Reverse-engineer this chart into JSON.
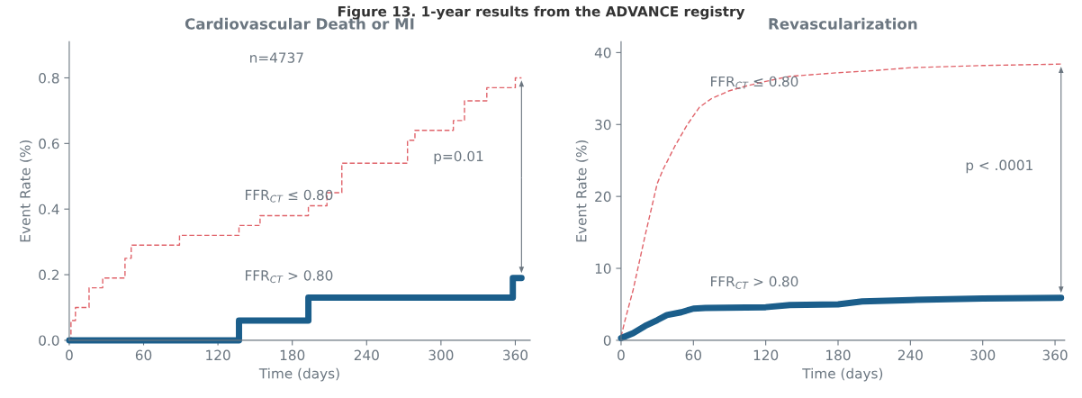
{
  "chart_data": [
    {
      "type": "step",
      "title": "Cardiovascular Death or MI",
      "xlabel": "Time (days)",
      "ylabel": "Event Rate (%)",
      "annotations": [
        "Figure 13. 1-year results from the ADVANCE registry",
        "n=4737",
        "p=0.01"
      ],
      "series": [
        {
          "name": "FFR$_{CT}$ ≤ 0.80",
          "color": "#e0636a",
          "line_style": "dashed",
          "x": [
            0,
            1.4,
            5,
            16,
            27,
            45,
            50,
            89,
            137,
            154,
            193,
            208,
            220,
            273,
            279,
            310,
            319,
            337,
            360,
            365
          ],
          "values": [
            0,
            0.06,
            0.1,
            0.16,
            0.19,
            0.25,
            0.29,
            0.32,
            0.35,
            0.38,
            0.41,
            0.45,
            0.54,
            0.61,
            0.64,
            0.67,
            0.73,
            0.77,
            0.8,
            0.8
          ]
        },
        {
          "name": "FFR$_{CT}$ > 0.80",
          "color": "#1b5e8b",
          "line_style": "solid",
          "x": [
            0,
            137,
            193,
            358,
            365
          ],
          "values": [
            0,
            0.06,
            0.13,
            0.19,
            0.19
          ]
        }
      ],
      "xlim": [
        0,
        372
      ],
      "ylim": [
        0,
        0.91
      ],
      "xticks": [
        0,
        60,
        120,
        180,
        240,
        300,
        360
      ],
      "yticks": [
        {
          "value": 0,
          "label": "0.0"
        },
        0.2,
        0.4,
        0.6,
        0.8
      ],
      "grid": false,
      "legend": false,
      "marker": "none"
    },
    {
      "type": "line",
      "title": "Revascularization",
      "xlabel": "Time (days)",
      "ylabel": "Event Rate (%)",
      "annotations": [
        "p < .0001"
      ],
      "series": [
        {
          "name": "FFR$_{CT}$ ≤ 0.80",
          "color": "#e0636a",
          "line_style": "dashed",
          "x": [
            0,
            3,
            10,
            20,
            30,
            35,
            45,
            55,
            65,
            75,
            90,
            105,
            120,
            140,
            180,
            210,
            240,
            300,
            365
          ],
          "values": [
            0.5,
            2.6,
            7,
            14.6,
            21.8,
            23.8,
            27.1,
            30,
            32.4,
            33.6,
            34.7,
            35.4,
            36,
            36.7,
            37.2,
            37.5,
            37.9,
            38.2,
            38.4
          ]
        },
        {
          "name": "FFR$_{CT}$ > 0.80",
          "color": "#1b5e8b",
          "line_style": "solid",
          "x": [
            0,
            10,
            20,
            30,
            38,
            50,
            60,
            70,
            120,
            140,
            180,
            200,
            240,
            300,
            365
          ],
          "values": [
            0.3,
            1,
            2,
            2.8,
            3.5,
            3.9,
            4.4,
            4.5,
            4.6,
            4.9,
            5.0,
            5.4,
            5.6,
            5.8,
            5.9
          ]
        }
      ],
      "xlim": [
        0,
        368
      ],
      "ylim": [
        0,
        41.5
      ],
      "xticks": [
        0,
        60,
        120,
        180,
        240,
        300,
        360
      ],
      "yticks": [
        0,
        10,
        20,
        30,
        40
      ],
      "grid": false,
      "legend": false,
      "marker": "none"
    }
  ]
}
